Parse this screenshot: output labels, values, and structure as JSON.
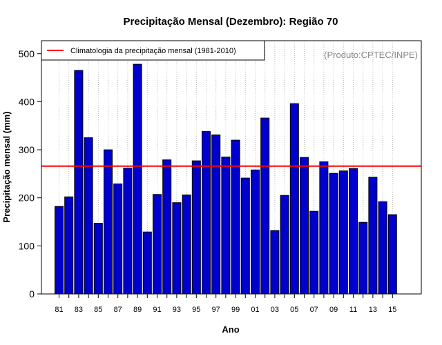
{
  "colors": {
    "bar_fill": "#0000cc",
    "bar_stroke": "#000000",
    "climatology_line": "#ff0000",
    "grid": "#bbbbbb",
    "credit_text": "#888888"
  },
  "chart_data": {
    "type": "bar",
    "title": "Precipitação Mensal (Dezembro): Região 70",
    "xlabel": "Ano",
    "ylabel": "Precipitação mensal (mm)",
    "ylim": [
      0,
      525
    ],
    "yticks": [
      0,
      100,
      200,
      300,
      400,
      500
    ],
    "grid": "vertical dotted",
    "categories": [
      "81",
      "82",
      "83",
      "84",
      "85",
      "86",
      "87",
      "88",
      "89",
      "90",
      "91",
      "92",
      "93",
      "94",
      "95",
      "96",
      "97",
      "98",
      "99",
      "00",
      "01",
      "02",
      "03",
      "04",
      "05",
      "06",
      "07",
      "08",
      "09",
      "10",
      "11",
      "12",
      "13",
      "14",
      "15"
    ],
    "xtick_labels": [
      "81",
      "83",
      "85",
      "87",
      "89",
      "91",
      "93",
      "95",
      "97",
      "99",
      "01",
      "03",
      "05",
      "07",
      "09",
      "11",
      "13",
      "15"
    ],
    "values": [
      182,
      202,
      465,
      325,
      147,
      300,
      229,
      262,
      478,
      129,
      207,
      279,
      190,
      206,
      277,
      338,
      331,
      285,
      320,
      241,
      258,
      366,
      132,
      205,
      396,
      284,
      172,
      275,
      251,
      256,
      261,
      149,
      243,
      192,
      165
    ],
    "climatology": {
      "label": "Climatologia da precipitação mensal (1981-2010)",
      "value": 266
    },
    "credit": "(Produto:CPTEC/INPE)",
    "legend_position": "top-left"
  }
}
